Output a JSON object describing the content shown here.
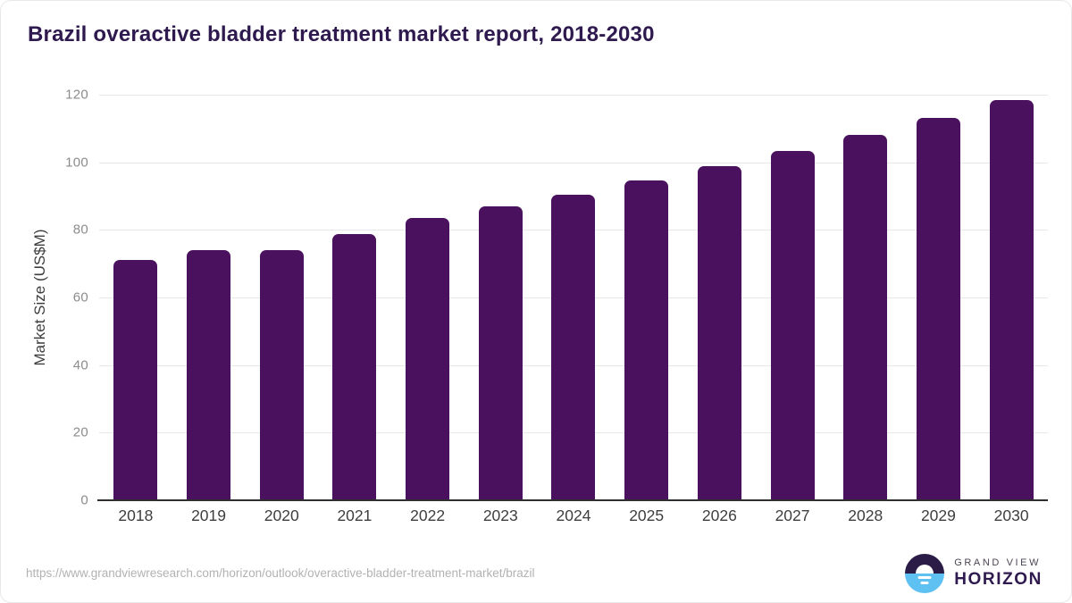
{
  "title": "Brazil overactive bladder treatment market report, 2018-2030",
  "chart_data": {
    "type": "bar",
    "title": "Brazil overactive bladder treatment market report, 2018-2030",
    "categories": [
      "2018",
      "2019",
      "2020",
      "2021",
      "2022",
      "2023",
      "2024",
      "2025",
      "2026",
      "2027",
      "2028",
      "2029",
      "2030"
    ],
    "values": [
      71.2,
      73.9,
      74.0,
      78.8,
      83.5,
      86.9,
      90.4,
      94.5,
      98.8,
      103.3,
      108.0,
      113.0,
      118.4
    ],
    "xlabel": "",
    "ylabel": "Market Size (US$M)",
    "ylim": [
      0,
      120
    ],
    "yticks": [
      0,
      20,
      40,
      60,
      80,
      100,
      120
    ],
    "grid": "horizontal",
    "legend": "none",
    "bar_color": "#4a125e"
  },
  "colors": {
    "title": "#2e1a4e",
    "bar": "#4a125e",
    "gridline": "#e7e7e7",
    "axis_line": "#2f2f2f",
    "tick_label": "#8c8c8c",
    "logo_dark": "#2b1b47",
    "logo_blue": "#5ec1f2"
  },
  "footer": {
    "url": "https://www.grandviewresearch.com/horizon/outlook/overactive-bladder-treatment-market/brazil"
  },
  "logo": {
    "line1": "GRAND VIEW",
    "line2": "HORIZON"
  }
}
